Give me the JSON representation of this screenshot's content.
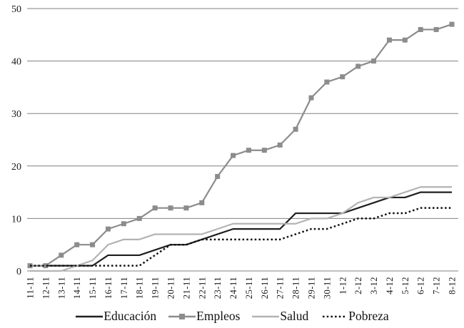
{
  "chart_data": {
    "type": "line",
    "title": "",
    "xlabel": "",
    "ylabel": "",
    "ylim": [
      0,
      50
    ],
    "yticks": [
      0,
      10,
      20,
      30,
      40,
      50
    ],
    "grid": "horizontal",
    "legend_position": "bottom",
    "categories": [
      "11-11",
      "12-11",
      "13-11",
      "14-11",
      "15-11",
      "16-11",
      "17-11",
      "18-11",
      "19-11",
      "20-11",
      "21-11",
      "22-11",
      "23-11",
      "24-11",
      "25-11",
      "26-11",
      "27-11",
      "28-11",
      "29-11",
      "30-11",
      "1-12",
      "2-12",
      "3-12",
      "4-12",
      "5-12",
      "6-12",
      "7-12",
      "8-12"
    ],
    "series": [
      {
        "name": "Educación",
        "key": "educacion",
        "color": "#1f1f1f",
        "line_style": "solid",
        "marker": "none",
        "values": [
          1,
          1,
          1,
          1,
          1,
          3,
          3,
          3,
          4,
          5,
          5,
          6,
          7,
          8,
          8,
          8,
          8,
          11,
          11,
          11,
          11,
          12,
          13,
          14,
          14,
          15,
          15,
          15
        ]
      },
      {
        "name": "Empleos",
        "key": "empleos",
        "color": "#8c8c8c",
        "line_style": "solid",
        "marker": "square",
        "values": [
          1,
          1,
          3,
          5,
          5,
          8,
          9,
          10,
          12,
          12,
          12,
          13,
          18,
          22,
          23,
          23,
          24,
          27,
          33,
          36,
          37,
          39,
          40,
          44,
          44,
          46,
          46,
          47
        ]
      },
      {
        "name": "Salud",
        "key": "salud",
        "color": "#b3b3b3",
        "line_style": "solid",
        "marker": "none",
        "values": [
          0,
          0,
          0,
          1,
          2,
          5,
          6,
          6,
          7,
          7,
          7,
          7,
          8,
          9,
          9,
          9,
          9,
          9,
          10,
          10,
          11,
          13,
          14,
          14,
          15,
          16,
          16,
          16
        ]
      },
      {
        "name": "Pobreza",
        "key": "pobreza",
        "color": "#0f0f0f",
        "line_style": "dotted",
        "marker": "none",
        "values": [
          1,
          1,
          1,
          1,
          1,
          1,
          1,
          1,
          3,
          5,
          5,
          6,
          6,
          6,
          6,
          6,
          6,
          7,
          8,
          8,
          9,
          10,
          10,
          11,
          11,
          12,
          12,
          12
        ]
      }
    ],
    "gridline_color": "#808080",
    "text_color": "#1a1a1a"
  }
}
